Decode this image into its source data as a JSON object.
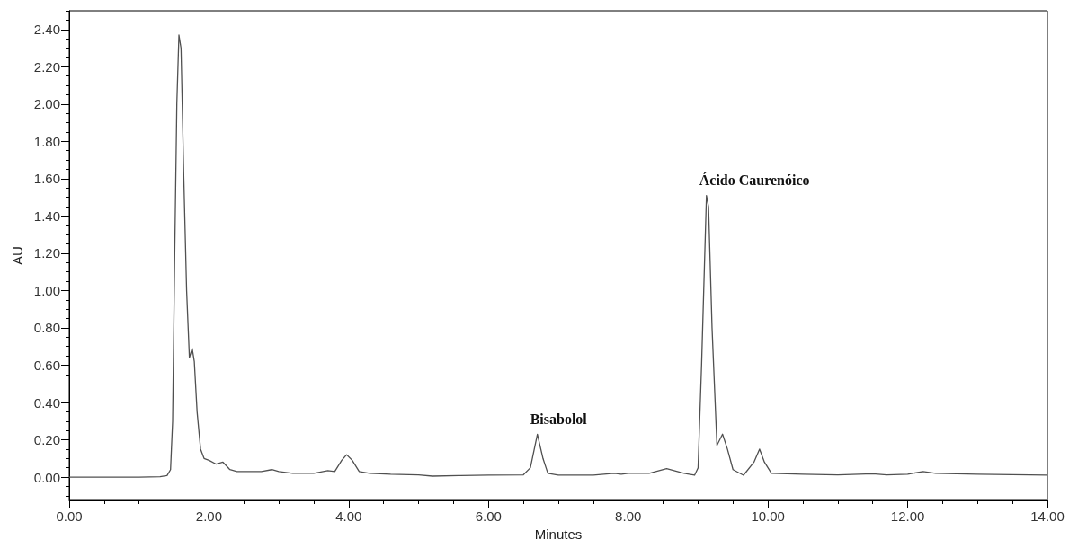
{
  "chart_data": {
    "type": "line",
    "xlabel": "Minutes",
    "ylabel": "AU",
    "x": [
      0,
      0.5,
      1.0,
      1.3,
      1.4,
      1.45,
      1.48,
      1.51,
      1.54,
      1.57,
      1.6,
      1.64,
      1.68,
      1.72,
      1.76,
      1.79,
      1.83,
      1.88,
      1.93,
      2.0,
      2.1,
      2.2,
      2.3,
      2.4,
      2.6,
      2.75,
      2.9,
      3.0,
      3.2,
      3.5,
      3.7,
      3.8,
      3.9,
      3.97,
      4.05,
      4.15,
      4.3,
      4.6,
      5.0,
      5.2,
      5.6,
      6.0,
      6.5,
      6.6,
      6.7,
      6.78,
      6.85,
      7.0,
      7.5,
      7.8,
      7.9,
      8.0,
      8.3,
      8.55,
      8.8,
      8.95,
      9.0,
      9.05,
      9.12,
      9.15,
      9.2,
      9.27,
      9.35,
      9.42,
      9.5,
      9.65,
      9.8,
      9.88,
      9.95,
      10.05,
      10.5,
      11.0,
      11.5,
      11.7,
      12.0,
      12.22,
      12.4,
      13.0,
      14.0
    ],
    "series": [
      {
        "color": "#505050",
        "values": [
          0,
          0,
          0,
          0.002,
          0.008,
          0.04,
          0.3,
          1.2,
          2.0,
          2.37,
          2.3,
          1.6,
          1.0,
          0.64,
          0.69,
          0.62,
          0.35,
          0.15,
          0.1,
          0.09,
          0.07,
          0.08,
          0.04,
          0.03,
          0.03,
          0.03,
          0.04,
          0.03,
          0.02,
          0.02,
          0.035,
          0.03,
          0.09,
          0.12,
          0.09,
          0.03,
          0.02,
          0.015,
          0.012,
          0.005,
          0.008,
          0.01,
          0.012,
          0.05,
          0.23,
          0.1,
          0.02,
          0.01,
          0.01,
          0.02,
          0.015,
          0.02,
          0.02,
          0.045,
          0.02,
          0.01,
          0.05,
          0.6,
          1.51,
          1.45,
          0.8,
          0.17,
          0.23,
          0.15,
          0.04,
          0.01,
          0.08,
          0.15,
          0.08,
          0.02,
          0.015,
          0.012,
          0.018,
          0.012,
          0.015,
          0.03,
          0.02,
          0.015,
          0.01
        ]
      }
    ],
    "annotations": [
      {
        "text": "Bisabolol",
        "x": 6.7,
        "y": 0.23
      },
      {
        "text": "Ácido Caurenóico",
        "x": 9.12,
        "y": 1.51
      }
    ],
    "xlim": [
      0,
      14
    ],
    "ylim": [
      -0.125,
      2.5
    ],
    "xticks": [
      {
        "value": 0,
        "label": "0.00"
      },
      {
        "value": 0.5,
        "label": null
      },
      {
        "value": 1,
        "label": null
      },
      {
        "value": 1.5,
        "label": null
      },
      {
        "value": 2,
        "label": "2.00"
      },
      {
        "value": 2.5,
        "label": null
      },
      {
        "value": 3,
        "label": null
      },
      {
        "value": 3.5,
        "label": null
      },
      {
        "value": 4,
        "label": "4.00"
      },
      {
        "value": 4.5,
        "label": null
      },
      {
        "value": 5,
        "label": null
      },
      {
        "value": 5.5,
        "label": null
      },
      {
        "value": 6,
        "label": "6.00"
      },
      {
        "value": 6.5,
        "label": null
      },
      {
        "value": 7,
        "label": null
      },
      {
        "value": 7.5,
        "label": null
      },
      {
        "value": 8,
        "label": "8.00"
      },
      {
        "value": 8.5,
        "label": null
      },
      {
        "value": 9,
        "label": null
      },
      {
        "value": 9.5,
        "label": null
      },
      {
        "value": 10,
        "label": "10.00"
      },
      {
        "value": 10.5,
        "label": null
      },
      {
        "value": 11,
        "label": null
      },
      {
        "value": 11.5,
        "label": null
      },
      {
        "value": 12,
        "label": "12.00"
      },
      {
        "value": 12.5,
        "label": null
      },
      {
        "value": 13,
        "label": null
      },
      {
        "value": 13.5,
        "label": null
      },
      {
        "value": 14,
        "label": "14.00"
      }
    ],
    "yticks": [
      {
        "value": -0.1,
        "label": null
      },
      {
        "value": -0.05,
        "label": null
      },
      {
        "value": 0,
        "label": "0.00"
      },
      {
        "value": 0.05,
        "label": null
      },
      {
        "value": 0.1,
        "label": null
      },
      {
        "value": 0.15,
        "label": null
      },
      {
        "value": 0.2,
        "label": "0.20"
      },
      {
        "value": 0.25,
        "label": null
      },
      {
        "value": 0.3,
        "label": null
      },
      {
        "value": 0.35,
        "label": null
      },
      {
        "value": 0.4,
        "label": "0.40"
      },
      {
        "value": 0.45,
        "label": null
      },
      {
        "value": 0.5,
        "label": null
      },
      {
        "value": 0.55,
        "label": null
      },
      {
        "value": 0.6,
        "label": "0.60"
      },
      {
        "value": 0.65,
        "label": null
      },
      {
        "value": 0.7,
        "label": null
      },
      {
        "value": 0.75,
        "label": null
      },
      {
        "value": 0.8,
        "label": "0.80"
      },
      {
        "value": 0.85,
        "label": null
      },
      {
        "value": 0.9,
        "label": null
      },
      {
        "value": 0.95,
        "label": null
      },
      {
        "value": 1,
        "label": "1.00"
      },
      {
        "value": 1.05,
        "label": null
      },
      {
        "value": 1.1,
        "label": null
      },
      {
        "value": 1.15,
        "label": null
      },
      {
        "value": 1.2,
        "label": "1.20"
      },
      {
        "value": 1.25,
        "label": null
      },
      {
        "value": 1.3,
        "label": null
      },
      {
        "value": 1.35,
        "label": null
      },
      {
        "value": 1.4,
        "label": "1.40"
      },
      {
        "value": 1.45,
        "label": null
      },
      {
        "value": 1.5,
        "label": null
      },
      {
        "value": 1.55,
        "label": null
      },
      {
        "value": 1.6,
        "label": "1.60"
      },
      {
        "value": 1.65,
        "label": null
      },
      {
        "value": 1.7,
        "label": null
      },
      {
        "value": 1.75,
        "label": null
      },
      {
        "value": 1.8,
        "label": "1.80"
      },
      {
        "value": 1.85,
        "label": null
      },
      {
        "value": 1.9,
        "label": null
      },
      {
        "value": 1.95,
        "label": null
      },
      {
        "value": 2,
        "label": "2.00"
      },
      {
        "value": 2.05,
        "label": null
      },
      {
        "value": 2.1,
        "label": null
      },
      {
        "value": 2.15,
        "label": null
      },
      {
        "value": 2.2,
        "label": "2.20"
      },
      {
        "value": 2.25,
        "label": null
      },
      {
        "value": 2.3,
        "label": null
      },
      {
        "value": 2.35,
        "label": null
      },
      {
        "value": 2.4,
        "label": "2.40"
      },
      {
        "value": 2.45,
        "label": null
      },
      {
        "value": 2.5,
        "label": null
      }
    ],
    "grid": false,
    "marker": "none",
    "line_style": "solid"
  }
}
